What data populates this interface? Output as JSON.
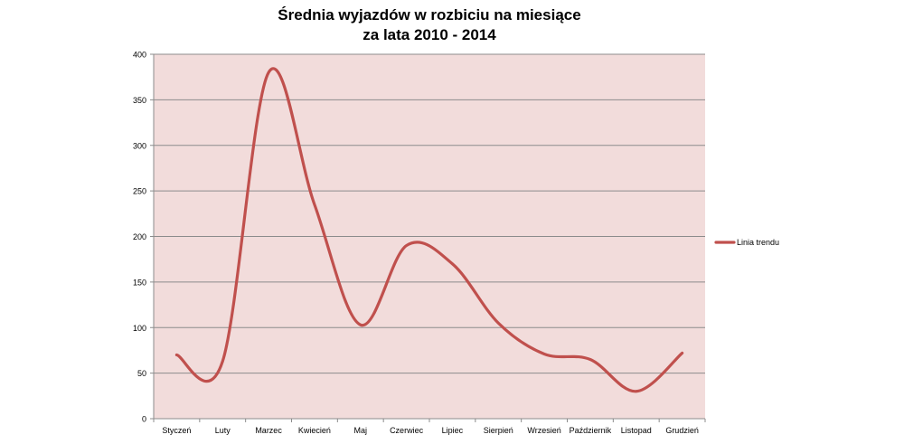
{
  "chart_data": {
    "type": "line",
    "title": "Średnia wyjazdów w rozbiciu na miesiące",
    "subtitle": "za lata 2010 - 2014",
    "xlabel": "",
    "ylabel": "",
    "categories": [
      "Styczeń",
      "Luty",
      "Marzec",
      "Kwiecień",
      "Maj",
      "Czerwiec",
      "Lipiec",
      "Sierpień",
      "Wrzesień",
      "Październik",
      "Listopad",
      "Grudzień"
    ],
    "series": [
      {
        "name": "Linia trendu",
        "color": "#C0504D",
        "values": [
          70,
          63,
          380,
          235,
          103,
          190,
          170,
          105,
          71,
          65,
          30,
          72
        ]
      }
    ],
    "ylim": [
      0,
      400
    ],
    "yticks": [
      0,
      50,
      100,
      150,
      200,
      250,
      300,
      350,
      400
    ],
    "grid": true,
    "legend": "right",
    "plot_background": "#F2DCDB"
  }
}
